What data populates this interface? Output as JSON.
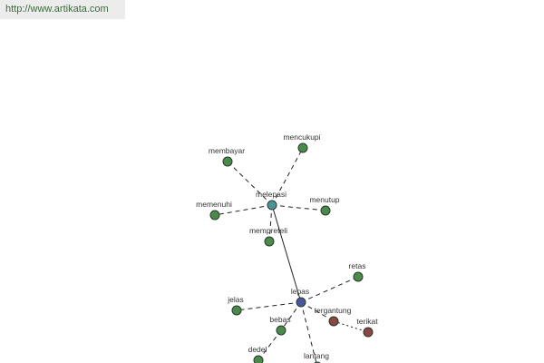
{
  "header": {
    "url": "http://www.artikata.com"
  },
  "nodes": [
    {
      "label": "melepasi"
    },
    {
      "label": "membayar"
    },
    {
      "label": "mencukupi"
    },
    {
      "label": "memenuhi"
    },
    {
      "label": "menutup"
    },
    {
      "label": "mempreteli"
    },
    {
      "label": "lepas"
    },
    {
      "label": "retas"
    },
    {
      "label": "jelas"
    },
    {
      "label": "bebas"
    },
    {
      "label": "tergantung"
    },
    {
      "label": "terikat"
    },
    {
      "label": "dedel"
    },
    {
      "label": "lantang"
    }
  ]
}
